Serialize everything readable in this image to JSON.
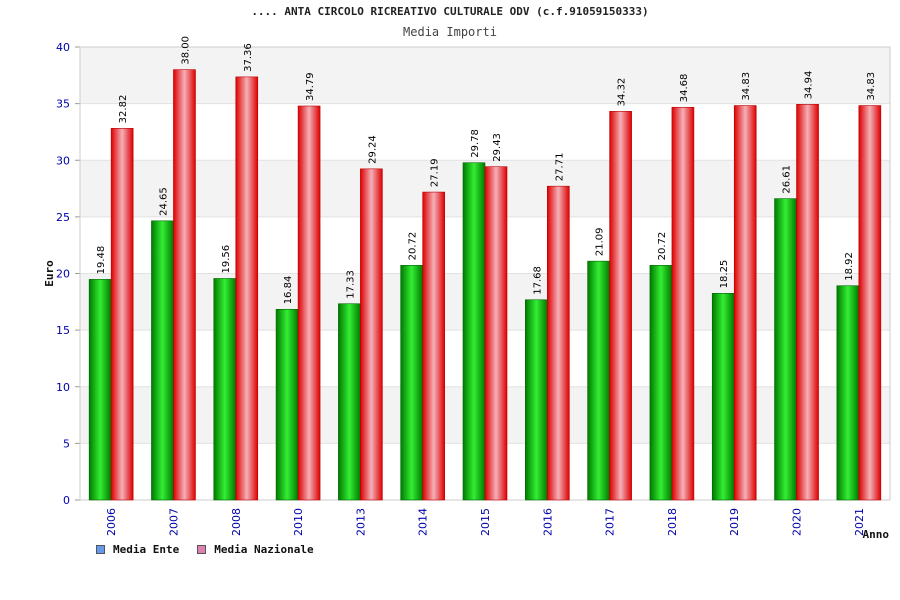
{
  "header": {
    "title": ".... ANTA CIRCOLO RICREATIVO CULTURALE ODV (c.f.91059150333)",
    "subtitle": "Media Importi"
  },
  "legend": {
    "items": [
      {
        "label": "Media Ente",
        "color": "#6699ee"
      },
      {
        "label": "Media Nazionale",
        "color": "#e080b0"
      }
    ]
  },
  "colors": {
    "ente": "#00bb00",
    "nazionale": "#ee2222",
    "tick_label": "#0000aa"
  },
  "chart_data": {
    "type": "bar",
    "title": ".... ANTA CIRCOLO RICREATIVO CULTURALE ODV (c.f.91059150333)",
    "subtitle": "Media Importi",
    "xlabel": "Anno",
    "ylabel": "Euro",
    "ylim": [
      0,
      40
    ],
    "yticks": [
      0,
      5,
      10,
      15,
      20,
      25,
      30,
      35,
      40
    ],
    "grid": true,
    "legend_position": "bottom-left",
    "categories": [
      "2006",
      "2007",
      "2008",
      "2010",
      "2013",
      "2014",
      "2015",
      "2016",
      "2017",
      "2018",
      "2019",
      "2020",
      "2021"
    ],
    "series": [
      {
        "name": "Media Ente",
        "values": [
          19.48,
          24.65,
          19.56,
          16.84,
          17.33,
          20.72,
          29.78,
          17.68,
          21.09,
          20.72,
          18.25,
          26.61,
          18.92
        ],
        "labels": [
          "19.48",
          "24.65",
          "19.56",
          "16.84",
          "17.33",
          "20.72",
          "29.78",
          "17.68",
          "21.09",
          "20.72",
          "18.25",
          "26.61",
          "18.92"
        ]
      },
      {
        "name": "Media Nazionale",
        "values": [
          32.82,
          38.0,
          37.36,
          34.79,
          29.24,
          27.19,
          29.43,
          27.71,
          34.32,
          34.68,
          34.83,
          34.94,
          34.83
        ],
        "labels": [
          "32.82",
          "38.00",
          "37.36",
          "34.79",
          "29.24",
          "27.19",
          "29.43",
          "27.71",
          "34.32",
          "34.68",
          "34.83",
          "34.94",
          "34.83"
        ]
      }
    ]
  }
}
